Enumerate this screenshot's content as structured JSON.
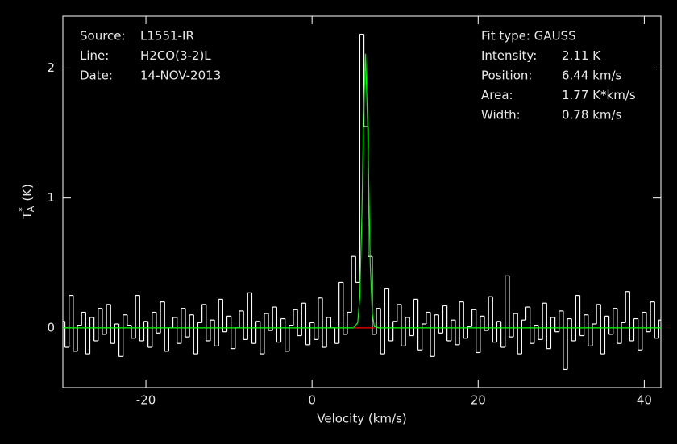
{
  "chart_data": {
    "type": "line",
    "xlabel": "Velocity (km/s)",
    "ylabel": {
      "symbol": "T",
      "sub": "A",
      "sup": "*",
      "unit": "(K)"
    },
    "xlim": [
      -30,
      42
    ],
    "ylim": [
      -0.46,
      2.4
    ],
    "xticks": [
      -20,
      0,
      20,
      40
    ],
    "yticks": [
      0,
      1,
      2
    ],
    "source": [
      [
        "Source:",
        "L1551-IR"
      ],
      [
        "Line:",
        "H2CO(3-2)L"
      ],
      [
        "Date:",
        "14-NOV-2013"
      ]
    ],
    "fit_type": "Fit type: GAUSS",
    "fit": [
      {
        "label": "Intensity:",
        "value": 2.11,
        "value_label": "2.11 K"
      },
      {
        "label": "Position:",
        "value": 6.44,
        "value_label": "6.44 km/s"
      },
      {
        "label": "Area:",
        "value": 1.77,
        "value_label": "1.77 K*km/s"
      },
      {
        "label": "Width:",
        "value": 0.78,
        "value_label": "0.78 km/s"
      }
    ],
    "series": [
      {
        "color": "#ffffff",
        "step": true,
        "x": [
          -30,
          -29.5,
          -29,
          -28.5,
          -28,
          -27.5,
          -27,
          -26.5,
          -26,
          -25.5,
          -25,
          -24.5,
          -24,
          -23.5,
          -23,
          -22.5,
          -22,
          -21.5,
          -21,
          -20.5,
          -20,
          -19.5,
          -19,
          -18.5,
          -18,
          -17.5,
          -17,
          -16.5,
          -16,
          -15.5,
          -15,
          -14.5,
          -14,
          -13.5,
          -13,
          -12.5,
          -12,
          -11.5,
          -11,
          -10.5,
          -10,
          -9.5,
          -9,
          -8.5,
          -8,
          -7.5,
          -7,
          -6.5,
          -6,
          -5.5,
          -5,
          -4.5,
          -4,
          -3.5,
          -3,
          -2.5,
          -2,
          -1.5,
          -1,
          -0.5,
          0,
          0.5,
          1,
          1.5,
          2,
          2.5,
          3,
          3.5,
          4,
          4.5,
          5,
          5.5,
          6,
          6.5,
          7,
          7.5,
          8,
          8.5,
          9,
          9.5,
          10,
          10.5,
          11,
          11.5,
          12,
          12.5,
          13,
          13.5,
          14,
          14.5,
          15,
          15.5,
          16,
          16.5,
          17,
          17.5,
          18,
          18.5,
          19,
          19.5,
          20,
          20.5,
          21,
          21.5,
          22,
          22.5,
          23,
          23.5,
          24,
          24.5,
          25,
          25.5,
          26,
          26.5,
          27,
          27.5,
          28,
          28.5,
          29,
          29.5,
          30,
          30.5,
          31,
          31.5,
          32,
          32.5,
          33,
          33.5,
          34,
          34.5,
          35,
          35.5,
          36,
          36.5,
          37,
          37.5,
          38,
          38.5,
          39,
          39.5,
          40,
          40.5,
          41,
          41.5,
          42
        ],
        "values": [
          0.05,
          -0.15,
          0.25,
          -0.18,
          0.02,
          0.12,
          -0.2,
          0.08,
          -0.1,
          0.15,
          -0.05,
          0.18,
          -0.12,
          0.03,
          -0.22,
          0.1,
          0.02,
          -0.08,
          0.25,
          -0.1,
          0.05,
          -0.15,
          0.12,
          -0.04,
          0.2,
          -0.18,
          0.0,
          0.08,
          -0.12,
          0.15,
          -0.07,
          0.1,
          -0.2,
          0.04,
          0.18,
          -0.1,
          0.06,
          -0.14,
          0.22,
          -0.03,
          0.09,
          -0.16,
          0.0,
          0.13,
          -0.09,
          0.27,
          -0.12,
          0.05,
          -0.2,
          0.11,
          -0.02,
          0.16,
          -0.11,
          0.07,
          -0.18,
          0.02,
          0.14,
          -0.06,
          0.19,
          -0.13,
          0.04,
          -0.09,
          0.23,
          -0.15,
          0.08,
          0.0,
          -0.12,
          0.35,
          -0.05,
          0.12,
          0.55,
          0.35,
          2.26,
          1.55,
          0.55,
          -0.05,
          0.15,
          -0.2,
          0.3,
          -0.1,
          0.05,
          0.18,
          -0.14,
          0.08,
          -0.06,
          0.22,
          -0.17,
          0.03,
          0.12,
          -0.22,
          0.1,
          -0.04,
          0.17,
          -0.1,
          0.06,
          -0.13,
          0.2,
          -0.08,
          0.01,
          0.14,
          -0.19,
          0.09,
          -0.02,
          0.24,
          -0.11,
          0.05,
          -0.15,
          0.4,
          -0.07,
          0.11,
          -0.2,
          0.06,
          0.16,
          -0.12,
          0.02,
          -0.09,
          0.19,
          -0.16,
          0.08,
          -0.03,
          0.13,
          -0.32,
          0.07,
          -0.1,
          0.25,
          -0.06,
          0.1,
          -0.14,
          0.03,
          0.18,
          -0.2,
          0.09,
          -0.05,
          0.15,
          -0.12,
          0.04,
          0.28,
          -0.1,
          0.07,
          -0.17,
          0.12,
          -0.03,
          0.2,
          -0.08,
          0.06
        ]
      },
      {
        "color": "#00ff00",
        "step": false,
        "x": [
          -30,
          5,
          5.5,
          5.75,
          6,
          6.2,
          6.44,
          6.7,
          7,
          7.25,
          7.5,
          8,
          42
        ],
        "values": [
          0,
          0,
          0.04,
          0.24,
          0.87,
          1.62,
          2.11,
          1.55,
          0.5,
          0.11,
          0.01,
          0,
          0
        ]
      },
      {
        "color": "#ff0000",
        "step": false,
        "x": [
          5,
          7.5
        ],
        "values": [
          0,
          0
        ]
      }
    ]
  }
}
